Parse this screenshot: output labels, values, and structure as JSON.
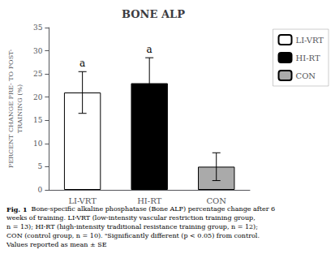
{
  "chart_data": {
    "type": "bar",
    "title": "BONE ALP",
    "ylabel": "PERCENT CHANGE PRE- TO POST-\nTRAINING (%)",
    "categories": [
      "LI-VRT",
      "HI-RT",
      "CON"
    ],
    "values": [
      21.0,
      23.0,
      5.0
    ],
    "errors": [
      4.5,
      5.5,
      3.0
    ],
    "annotations": [
      "a",
      "a",
      null
    ],
    "colors": [
      "white",
      "black",
      "#aaaaaa"
    ],
    "ylim": [
      0,
      35
    ],
    "yticks": [
      0,
      5,
      10,
      15,
      20,
      25,
      30,
      35
    ],
    "grid": false,
    "legend": "right",
    "caption_label": "Fig. 1",
    "caption": "  Bone-specific alkaline phosphatase (Bone ALP) percentage change after 6 weeks of training. LI-VRT (low-intensity vascular restriction training group, n = 13); HI-RT (high-intensity traditional resistance training group, n = 12); CON (control group, n = 10). ᵃSignificantly different (p < 0.05) from control. Values reported as mean ± SE"
  }
}
